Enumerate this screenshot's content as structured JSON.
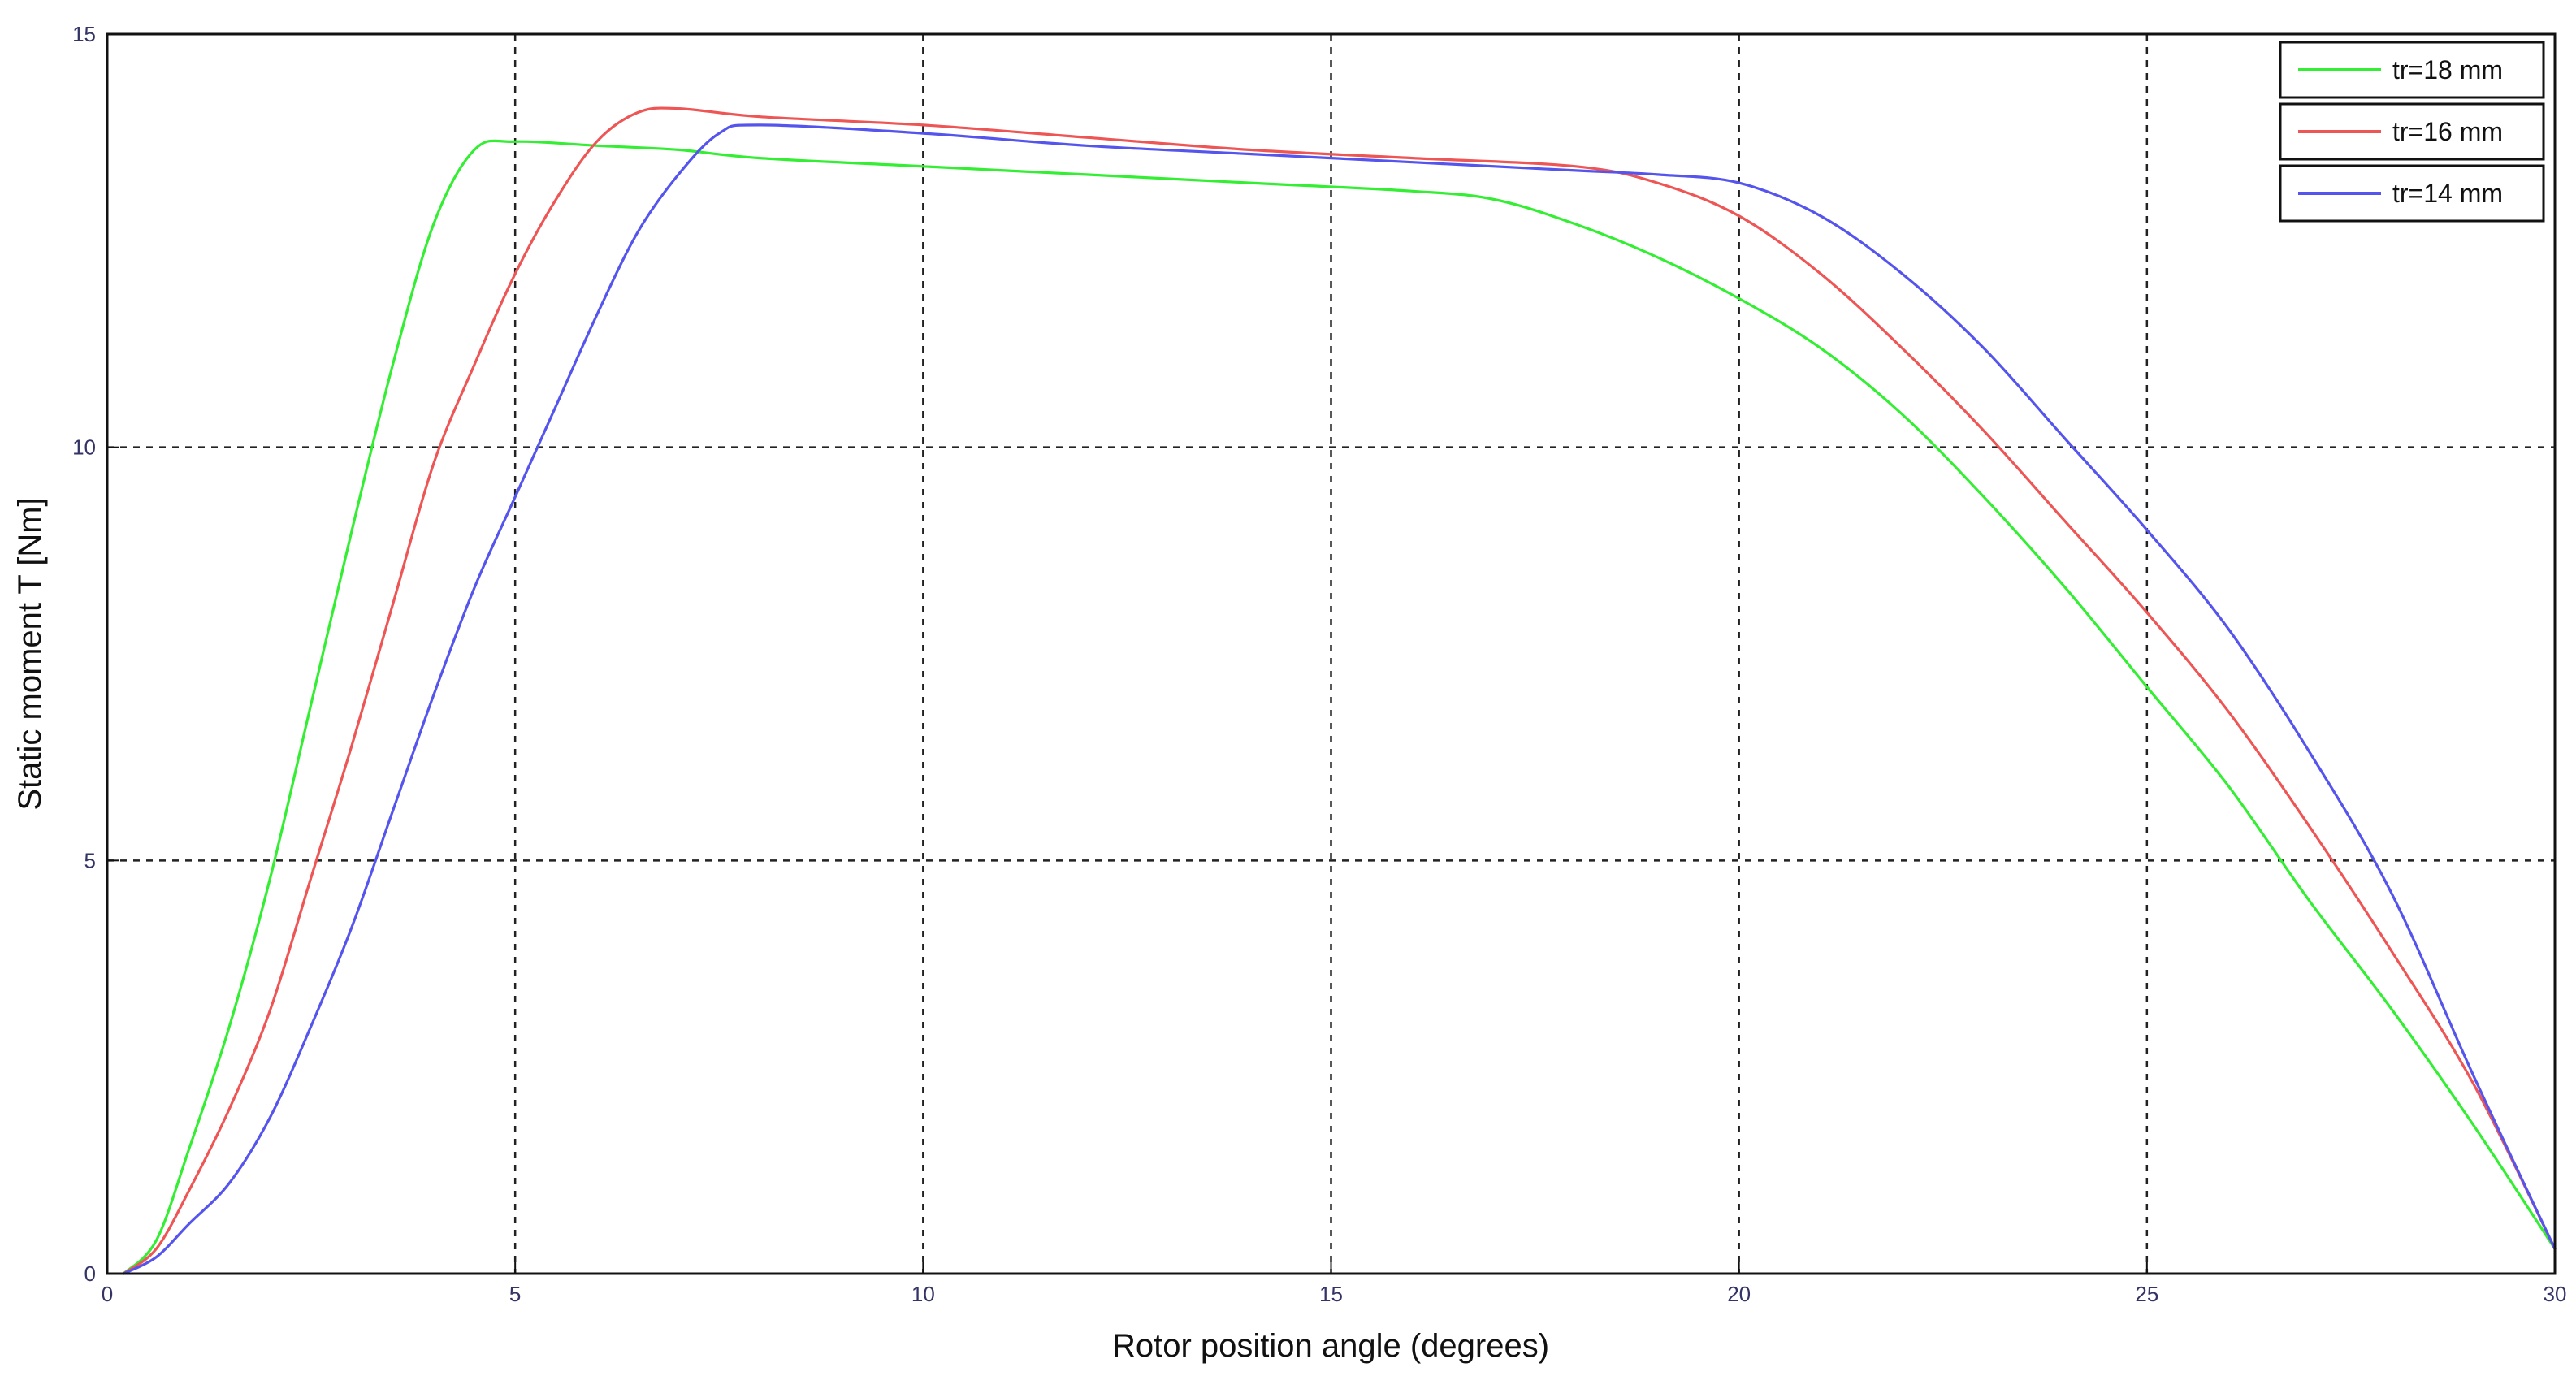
{
  "chart_data": {
    "type": "line",
    "xlabel": "Rotor position angle (degrees)",
    "ylabel": "Static moment  T [Nm]",
    "xlim": [
      0,
      30
    ],
    "ylim": [
      0,
      15
    ],
    "xticks": [
      0,
      5,
      10,
      15,
      20,
      25,
      30
    ],
    "yticks": [
      0,
      5,
      10,
      15
    ],
    "xtick_labels": [
      "0",
      "5",
      "10",
      "15",
      "20",
      "25",
      "30"
    ],
    "ytick_labels": [
      "0",
      "5",
      "10",
      "15"
    ],
    "grid": true,
    "legend_position": "top-right",
    "series": [
      {
        "name": "tr=18 mm",
        "color": "#33ee33",
        "x": [
          0.2,
          0.6,
          1.0,
          1.5,
          2.0,
          2.5,
          3.0,
          3.5,
          4.0,
          4.5,
          5.0,
          6.0,
          7.0,
          8.0,
          10.0,
          12.0,
          14.0,
          16.0,
          17.0,
          18.0,
          19.0,
          20.0,
          21.0,
          22.0,
          23.0,
          24.0,
          25.0,
          26.0,
          27.0,
          28.0,
          29.0,
          30.0
        ],
        "y": [
          0.0,
          0.4,
          1.5,
          3.0,
          4.8,
          6.9,
          9.0,
          11.0,
          12.7,
          13.6,
          13.7,
          13.65,
          13.6,
          13.5,
          13.4,
          13.3,
          13.2,
          13.1,
          13.0,
          12.7,
          12.3,
          11.8,
          11.2,
          10.4,
          9.4,
          8.3,
          7.1,
          5.9,
          4.5,
          3.2,
          1.8,
          0.3
        ]
      },
      {
        "name": "tr=16 mm",
        "color": "#ee5555",
        "x": [
          0.2,
          0.6,
          1.0,
          1.5,
          2.0,
          2.5,
          3.0,
          3.5,
          4.0,
          4.5,
          5.0,
          5.5,
          6.0,
          6.5,
          7.0,
          8.0,
          10.0,
          12.0,
          14.0,
          16.0,
          18.0,
          19.0,
          20.0,
          21.0,
          22.0,
          23.0,
          24.0,
          25.0,
          26.0,
          27.0,
          28.0,
          29.0,
          30.0
        ],
        "y": [
          0.0,
          0.3,
          1.0,
          2.0,
          3.2,
          4.8,
          6.4,
          8.1,
          9.8,
          11.0,
          12.1,
          13.0,
          13.7,
          14.05,
          14.1,
          14.0,
          13.9,
          13.75,
          13.6,
          13.5,
          13.4,
          13.2,
          12.8,
          12.1,
          11.2,
          10.2,
          9.1,
          8.0,
          6.8,
          5.4,
          3.9,
          2.3,
          0.3
        ]
      },
      {
        "name": "tr=14 mm",
        "color": "#5555ee",
        "x": [
          0.2,
          0.6,
          1.0,
          1.5,
          2.0,
          2.5,
          3.0,
          3.5,
          4.0,
          4.5,
          5.0,
          5.5,
          6.0,
          6.5,
          7.0,
          7.5,
          8.0,
          10.0,
          12.0,
          14.0,
          16.0,
          18.0,
          19.0,
          20.0,
          21.0,
          22.0,
          23.0,
          24.0,
          25.0,
          26.0,
          27.0,
          28.0,
          29.0,
          30.0
        ],
        "y": [
          0.0,
          0.2,
          0.6,
          1.1,
          1.9,
          3.0,
          4.2,
          5.6,
          7.0,
          8.3,
          9.4,
          10.5,
          11.6,
          12.6,
          13.3,
          13.8,
          13.9,
          13.8,
          13.65,
          13.55,
          13.45,
          13.35,
          13.3,
          13.2,
          12.8,
          12.1,
          11.2,
          10.1,
          9.0,
          7.8,
          6.3,
          4.6,
          2.4,
          0.3
        ]
      }
    ]
  }
}
